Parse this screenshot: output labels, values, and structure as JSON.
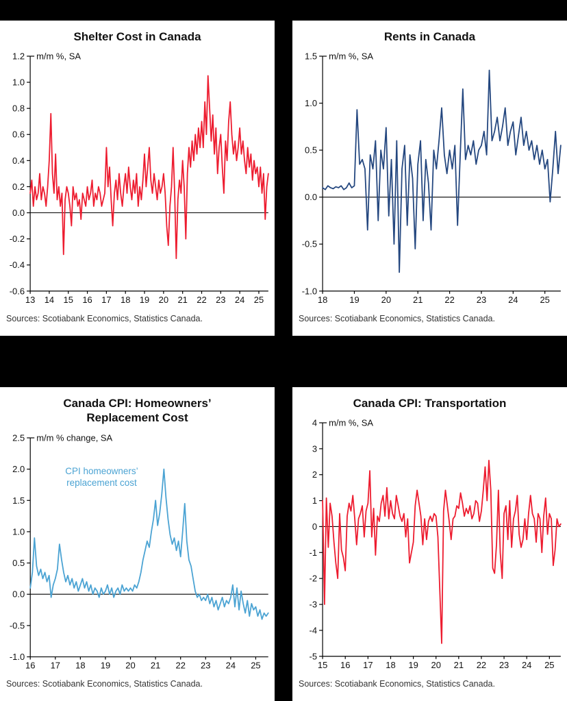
{
  "page": {
    "background": "#000000",
    "panel_background": "#ffffff"
  },
  "chart_data": [
    {
      "type": "line",
      "title": "Shelter Cost in Canada",
      "ylabel": "m/m %, SA",
      "source": "Sources: Scotiabank Economics, Statistics Canada.",
      "color": "#ED1C2F",
      "ylim": [
        -0.6,
        1.2
      ],
      "ytick_step": 0.2,
      "ytick_decimals": 1,
      "x_tick_labels": [
        "13",
        "14",
        "15",
        "16",
        "17",
        "18",
        "19",
        "20",
        "21",
        "22",
        "23",
        "24",
        "25"
      ],
      "values": [
        0.15,
        0.25,
        0.05,
        0.2,
        0.1,
        0.15,
        0.3,
        0.1,
        0.2,
        0.15,
        0.05,
        0.2,
        0.4,
        0.76,
        0.3,
        0.15,
        0.45,
        0.1,
        0.2,
        0.05,
        0.15,
        -0.32,
        0.1,
        0.2,
        0.15,
        0.05,
        -0.1,
        0.2,
        0.1,
        0.15,
        0.05,
        0.1,
        -0.05,
        0.15,
        0.1,
        0.05,
        0.2,
        0.1,
        0.15,
        0.25,
        0.05,
        0.15,
        0.1,
        0.2,
        0.15,
        0.05,
        0.1,
        0.15,
        0.5,
        0.2,
        0.35,
        0.1,
        -0.1,
        0.15,
        0.25,
        0.1,
        0.3,
        0.15,
        0.05,
        0.2,
        0.3,
        0.15,
        0.35,
        0.2,
        0.1,
        0.25,
        0.15,
        0.3,
        0.05,
        0.2,
        0.1,
        0.25,
        0.45,
        0.2,
        0.35,
        0.5,
        0.25,
        0.15,
        0.3,
        0.2,
        0.1,
        0.25,
        0.15,
        0.2,
        0.3,
        0.15,
        -0.1,
        -0.25,
        0.05,
        0.2,
        0.5,
        0.15,
        -0.35,
        0.1,
        0.25,
        0.15,
        0.4,
        0.2,
        -0.2,
        0.3,
        0.5,
        0.35,
        0.55,
        0.4,
        0.6,
        0.45,
        0.65,
        0.5,
        0.7,
        0.5,
        0.85,
        0.6,
        1.05,
        0.8,
        0.55,
        0.75,
        0.45,
        0.65,
        0.3,
        0.5,
        0.6,
        0.35,
        0.15,
        0.55,
        0.4,
        0.7,
        0.85,
        0.6,
        0.45,
        0.55,
        0.4,
        0.5,
        0.65,
        0.45,
        0.55,
        0.4,
        0.3,
        0.5,
        0.35,
        0.45,
        0.25,
        0.4,
        0.3,
        0.35,
        0.2,
        0.35,
        0.15,
        0.3,
        -0.05,
        0.2,
        0.3
      ]
    },
    {
      "type": "line",
      "title": "Rents in Canada",
      "ylabel": "m/m %, SA",
      "source": "Sources: Scotiabank Economics, Statistics Canada.",
      "color": "#24477F",
      "ylim": [
        -1.0,
        1.5
      ],
      "ytick_step": 0.5,
      "ytick_decimals": 1,
      "x_tick_labels": [
        "18",
        "19",
        "20",
        "21",
        "22",
        "23",
        "24",
        "25"
      ],
      "values": [
        0.1,
        0.08,
        0.12,
        0.1,
        0.09,
        0.11,
        0.1,
        0.12,
        0.08,
        0.1,
        0.15,
        0.1,
        0.12,
        0.93,
        0.35,
        0.4,
        0.3,
        -0.35,
        0.45,
        0.3,
        0.6,
        -0.25,
        0.5,
        0.3,
        0.74,
        -0.2,
        0.4,
        -0.5,
        0.6,
        -0.8,
        0.3,
        0.55,
        -0.3,
        0.45,
        0.2,
        -0.55,
        0.35,
        0.6,
        -0.25,
        0.4,
        0.15,
        -0.35,
        0.5,
        0.3,
        0.6,
        0.95,
        0.45,
        0.25,
        0.5,
        0.3,
        0.55,
        -0.3,
        0.45,
        1.15,
        0.4,
        0.55,
        0.45,
        0.6,
        0.35,
        0.5,
        0.55,
        0.7,
        0.45,
        1.35,
        0.6,
        0.7,
        0.85,
        0.6,
        0.75,
        0.95,
        0.55,
        0.7,
        0.8,
        0.45,
        0.65,
        0.85,
        0.55,
        0.7,
        0.5,
        0.6,
        0.4,
        0.55,
        0.35,
        0.5,
        0.3,
        0.4,
        -0.05,
        0.3,
        0.7,
        0.25,
        0.55
      ]
    },
    {
      "type": "line",
      "title": "Canada CPI: Homeowners’\nReplacement Cost",
      "ylabel": "m/m % change, SA",
      "source": "Sources: Scotiabank Economics, Statistics Canada.",
      "color": "#4BA3D3",
      "ylim": [
        -1.0,
        2.5
      ],
      "ytick_step": 0.5,
      "ytick_decimals": 1,
      "x_tick_labels": [
        "16",
        "17",
        "18",
        "19",
        "20",
        "21",
        "22",
        "23",
        "24",
        "25"
      ],
      "annotation": {
        "lines": [
          "CPI homeowners’",
          "replacement cost"
        ],
        "x_frac": 0.3,
        "y_value": 1.92
      },
      "values": [
        0.1,
        0.35,
        0.9,
        0.45,
        0.3,
        0.4,
        0.25,
        0.35,
        0.2,
        0.3,
        -0.05,
        0.15,
        0.25,
        0.4,
        0.8,
        0.55,
        0.35,
        0.2,
        0.3,
        0.15,
        0.25,
        0.1,
        0.2,
        0.05,
        0.15,
        0.25,
        0.1,
        0.2,
        0.05,
        0.15,
        0,
        0.1,
        0.05,
        -0.05,
        0.1,
        0,
        0.05,
        0.15,
        0,
        0.1,
        -0.05,
        0.05,
        0.1,
        0,
        0.15,
        0.05,
        0.1,
        0.05,
        0.1,
        0.05,
        0.15,
        0.1,
        0.2,
        0.35,
        0.55,
        0.7,
        0.85,
        0.75,
        1,
        1.2,
        1.5,
        1.1,
        1.3,
        1.6,
        2,
        1.55,
        1.2,
        0.95,
        0.8,
        0.9,
        0.7,
        0.85,
        0.6,
        1,
        1.45,
        0.85,
        0.55,
        0.45,
        0.25,
        0.05,
        -0.05,
        0,
        -0.1,
        -0.05,
        -0.1,
        0,
        -0.15,
        -0.05,
        -0.2,
        -0.1,
        -0.25,
        -0.15,
        -0.05,
        -0.2,
        -0.1,
        -0.15,
        -0.05,
        0.15,
        -0.2,
        0.1,
        -0.25,
        0.05,
        -0.15,
        -0.3,
        -0.1,
        -0.35,
        -0.15,
        -0.25,
        -0.2,
        -0.35,
        -0.25,
        -0.4,
        -0.3,
        -0.35,
        -0.3
      ]
    },
    {
      "type": "line",
      "title": "Canada CPI: Transportation",
      "ylabel": "m/m %, SA",
      "source": "Sources: Scotiabank Economics, Statistics Canada.",
      "color": "#ED1C2F",
      "ylim": [
        -5,
        4
      ],
      "ytick_step": 1,
      "ytick_decimals": 0,
      "x_tick_labels": [
        "15",
        "16",
        "17",
        "18",
        "19",
        "20",
        "21",
        "22",
        "23",
        "24",
        "25"
      ],
      "values": [
        1,
        -3,
        1.1,
        -0.8,
        0.9,
        0.4,
        -0.6,
        -1.4,
        -2,
        0.5,
        -0.9,
        -1.2,
        -1.7,
        0.4,
        0.9,
        0.6,
        1.2,
        0.3,
        -0.7,
        0.3,
        0.5,
        0.8,
        -0.4,
        0.6,
        0.9,
        2.15,
        -0.4,
        0.7,
        -1.1,
        0.4,
        0.2,
        0.9,
        1.2,
        0.4,
        1.5,
        0.3,
        1,
        0.5,
        0.3,
        1.2,
        0.8,
        0.4,
        0.2,
        0.5,
        -0.4,
        0.3,
        -1.4,
        -1,
        -0.6,
        0.8,
        1.4,
        0.9,
        0.4,
        -0.7,
        0.3,
        -0.5,
        0.2,
        0.4,
        0.2,
        0.5,
        0.4,
        -0.4,
        -2.4,
        -4.5,
        0.6,
        1.4,
        0.8,
        0.2,
        -0.5,
        0.3,
        0.4,
        0.8,
        0.7,
        1.3,
        0.9,
        0.4,
        0.7,
        0.5,
        0.8,
        0.3,
        0.5,
        1,
        0.9,
        0.2,
        0.6,
        1.4,
        2.3,
        1,
        2.55,
        1.4,
        -1.6,
        -1.8,
        -0.7,
        1.4,
        -1,
        -2,
        0.5,
        0.8,
        -0.5,
        1,
        -0.8,
        0.3,
        0.6,
        1.2,
        -0.3,
        -0.8,
        -0.5,
        0.3,
        -0.5,
        0.5,
        1.2,
        0.5,
        0.3,
        -0.6,
        0.5,
        0.3,
        -1,
        0.4,
        1.1,
        -0.3,
        0.5,
        0.3,
        -1.5,
        -0.9,
        0.3,
        0,
        0.1
      ]
    }
  ]
}
